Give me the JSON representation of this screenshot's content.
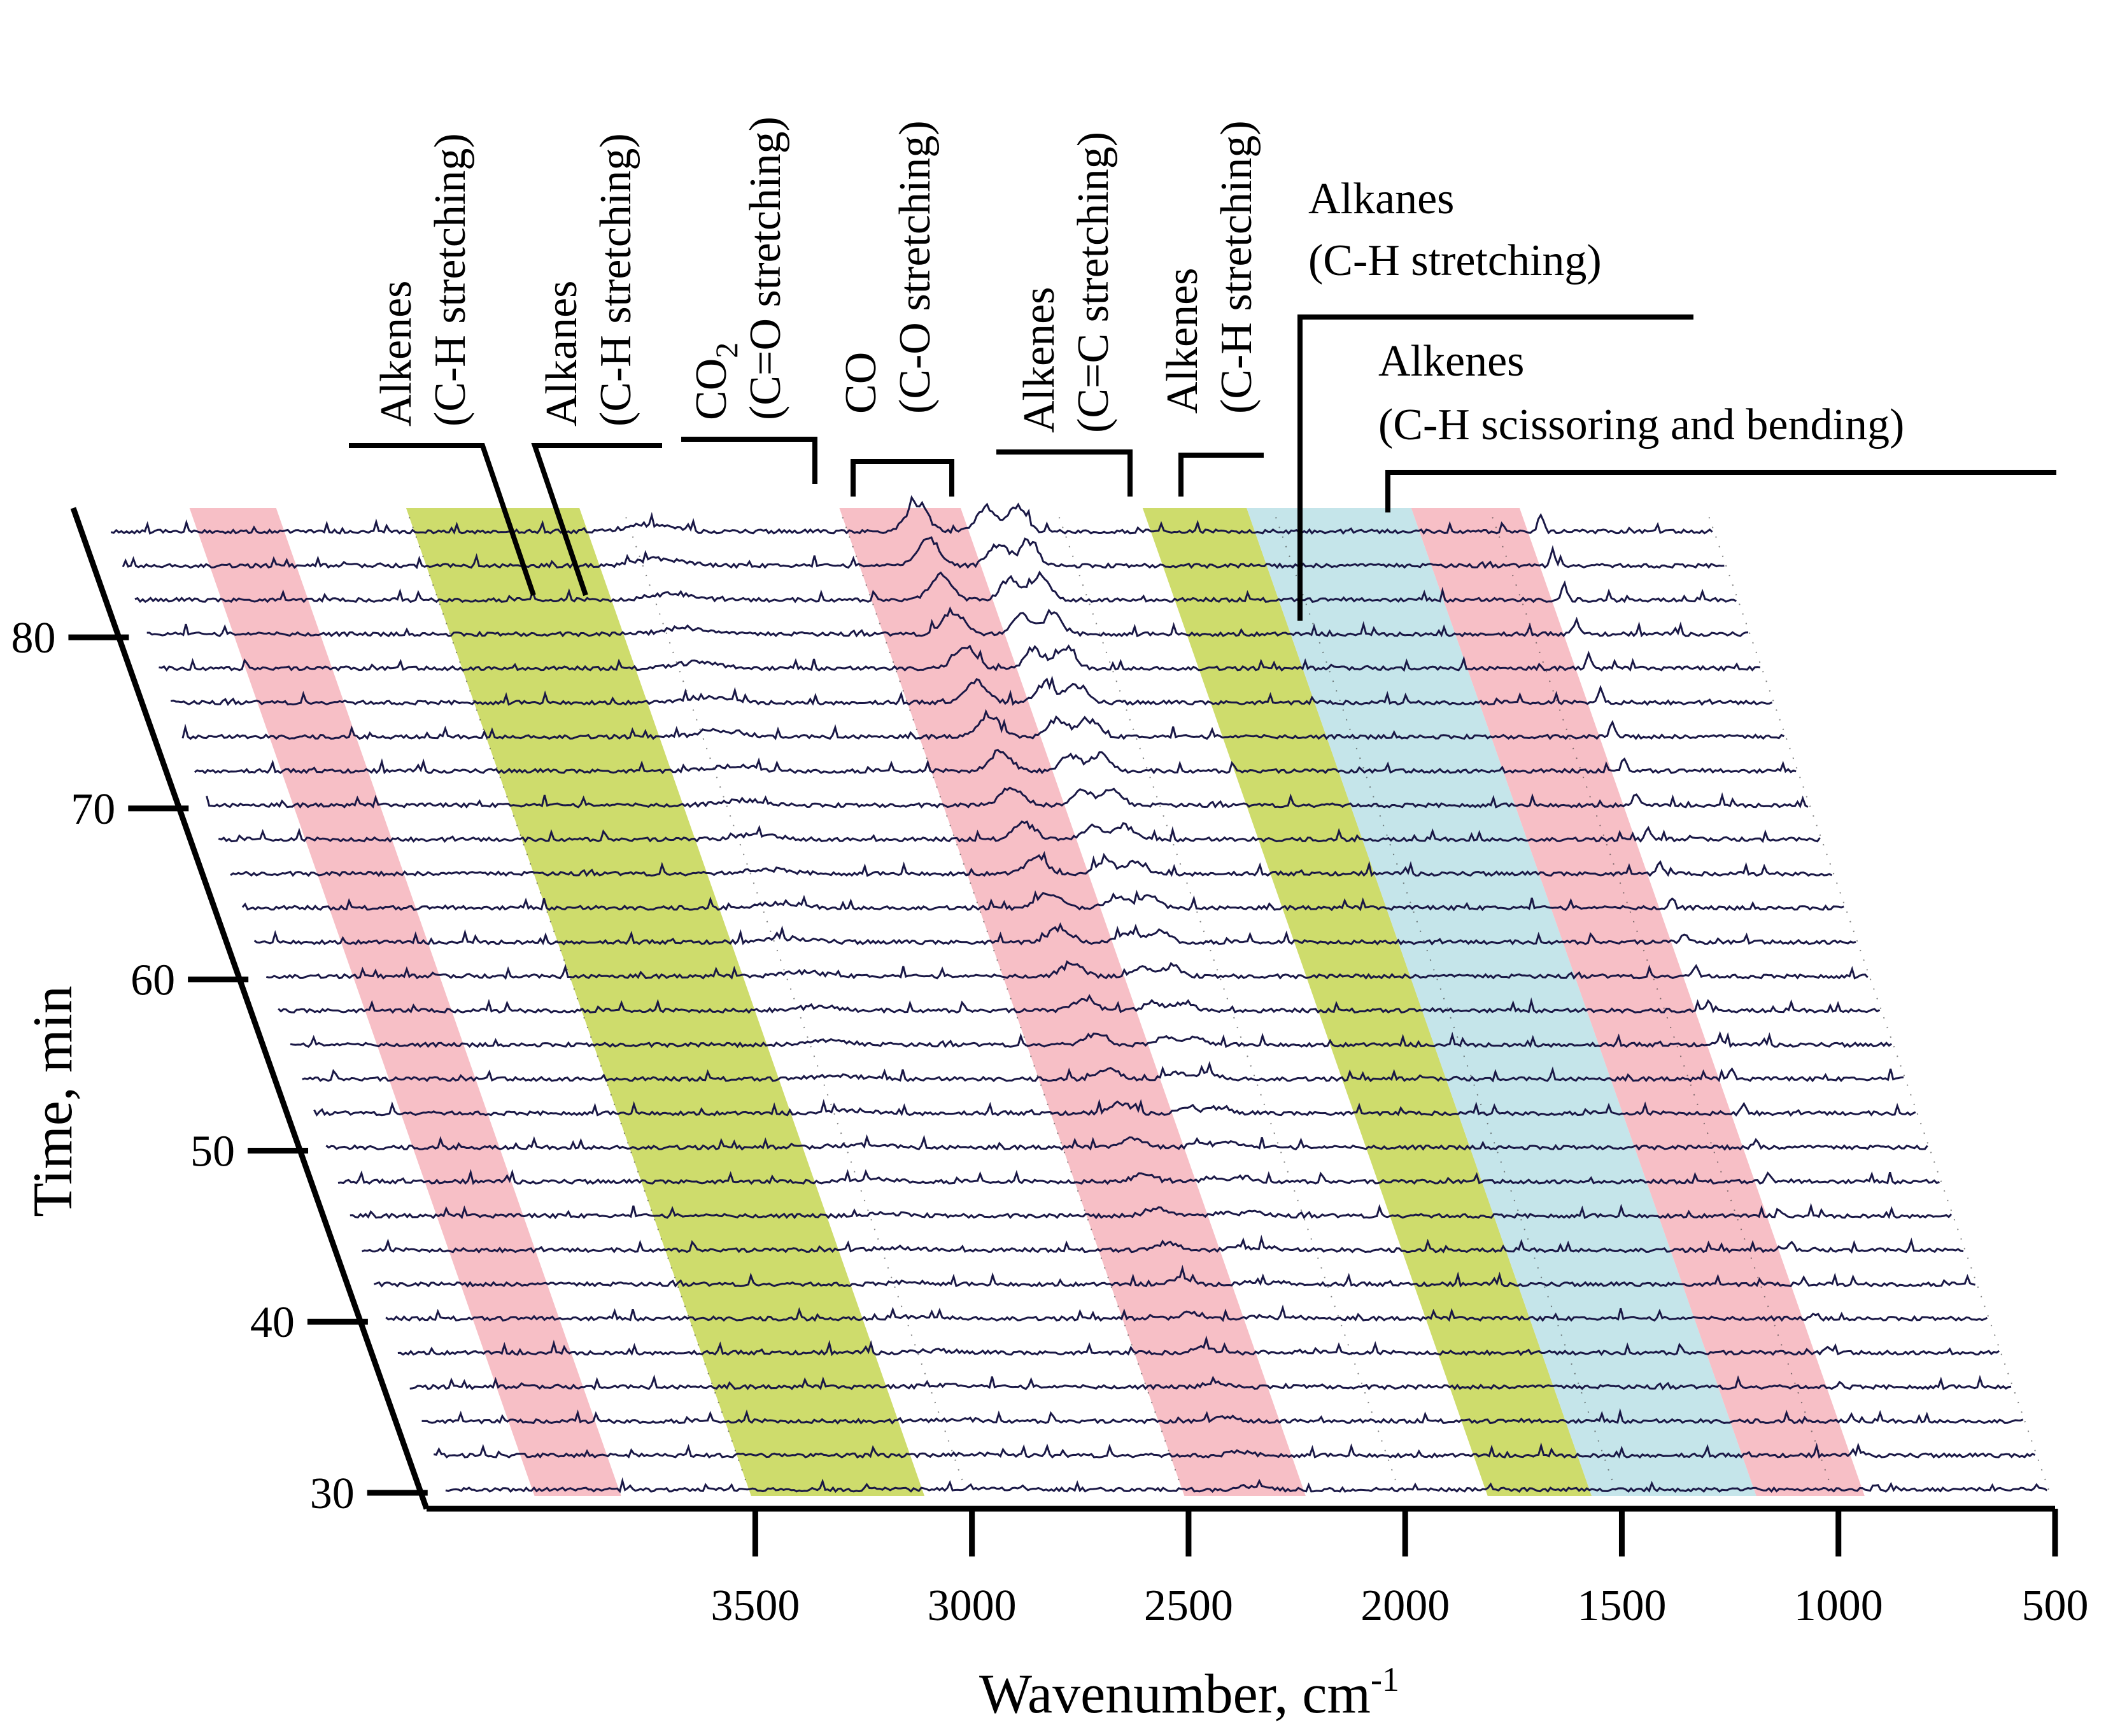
{
  "chart_data": {
    "type": "waterfall",
    "description_free": true,
    "xlabel": "Wavenumber, cm",
    "xlabel_superscript": "-1",
    "ylabel": "Time, min",
    "x_range": [
      4200,
      500
    ],
    "x_ticks": [
      3500,
      3000,
      2500,
      2000,
      1500,
      1000,
      500
    ],
    "x_tick_labels": [
      "3500",
      "3000",
      "2500",
      "2000",
      "1500",
      "1000",
      "500"
    ],
    "time_range": [
      30,
      87
    ],
    "y_ticks": [
      30,
      40,
      50,
      60,
      70,
      80
    ],
    "y_tick_labels": [
      "30",
      "40",
      "50",
      "60",
      "70",
      "80"
    ],
    "spectrum_times": [
      30,
      32,
      34,
      36,
      38,
      40,
      42,
      44,
      46,
      48,
      50,
      52,
      54,
      56,
      58,
      60,
      62,
      64,
      66,
      68,
      70,
      72,
      74,
      76,
      78,
      80,
      82,
      84,
      86
    ],
    "bands": [
      {
        "from": 4000,
        "to": 3800,
        "color": "#f6b8c0"
      },
      {
        "from": 3500,
        "to": 3100,
        "color": "#c9d85c"
      },
      {
        "from": 2500,
        "to": 2220,
        "color": "#f6b8c0"
      },
      {
        "from": 1800,
        "to": 1560,
        "color": "#c9d85c"
      },
      {
        "from": 1560,
        "to": 1180,
        "color": "#bfe2e8"
      },
      {
        "from": 1180,
        "to": 930,
        "color": "#f6b8c0"
      }
    ],
    "peaks": [
      {
        "name": "CO2",
        "center": 2340,
        "width": 34,
        "height_start": 0.12,
        "height_end": 0.85,
        "color": "#1e1b5e"
      },
      {
        "name": "CO-a",
        "center": 2180,
        "width": 30,
        "height_start": 0.0,
        "height_end": 0.75,
        "color": "#0c0b2e"
      },
      {
        "name": "CO-b",
        "center": 2110,
        "width": 30,
        "height_start": 0.0,
        "height_end": 0.8,
        "color": "#0c0b2e"
      },
      {
        "name": "Alkanes C-H",
        "center": 2960,
        "width": 70,
        "height_start": 0.05,
        "height_end": 0.22,
        "color": "#1e1b5e"
      },
      {
        "name": "Alkenes C-H bending",
        "center": 900,
        "width": 8,
        "height_start": 0.15,
        "height_end": 0.55,
        "color": "#2b2a8a"
      }
    ],
    "annotations": [
      {
        "line1": "Alkenes",
        "line2": "(C-H stretching)",
        "orientation": "vertical"
      },
      {
        "line1": "Alkanes",
        "line2": "(C-H stretching)",
        "orientation": "vertical"
      },
      {
        "line1": "CO",
        "sub": "2",
        "line2": "(C=O stretching)",
        "orientation": "vertical"
      },
      {
        "line1": "CO",
        "line2": "(C-O stretching)",
        "orientation": "vertical"
      },
      {
        "line1": "Alkenes",
        "line2": "(C=C stretching)",
        "orientation": "vertical"
      },
      {
        "line1": "Alkenes",
        "line2": "(C-H stretching)",
        "orientation": "vertical"
      },
      {
        "line1": "Alkanes",
        "line2": "(C-H stretching)",
        "orientation": "horizontal"
      },
      {
        "line1": "Alkenes",
        "line2": "(C-H scissoring and bending)",
        "orientation": "horizontal"
      }
    ]
  }
}
